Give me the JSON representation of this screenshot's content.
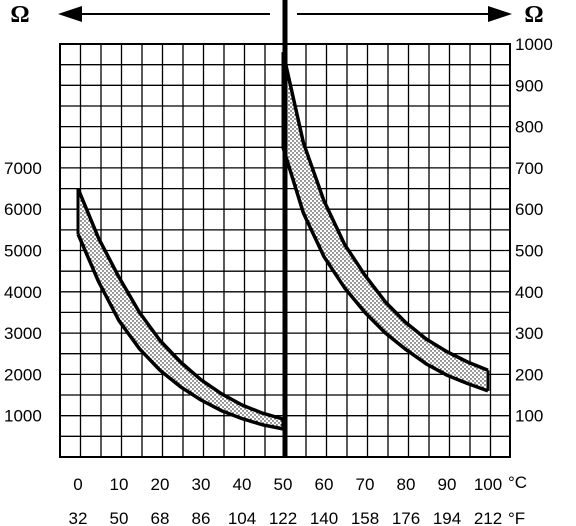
{
  "chart_data": {
    "type": "area",
    "title": "",
    "colors": {
      "ink": "#000000",
      "background": "#ffffff",
      "band_fill": "stipple-gray"
    },
    "grid": true,
    "left_axis": {
      "unit_label": "Ω",
      "ticks": [
        1000,
        2000,
        3000,
        4000,
        5000,
        6000,
        7000
      ],
      "ylim": [
        0,
        10000
      ]
    },
    "right_axis": {
      "unit_label": "Ω",
      "ticks": [
        100,
        200,
        300,
        400,
        500,
        600,
        700,
        800,
        900,
        1000
      ],
      "ylim": [
        0,
        1000
      ]
    },
    "x_axis_celsius": {
      "unit_label": "°C",
      "ticks": [
        0,
        10,
        20,
        30,
        40,
        50,
        60,
        70,
        80,
        90,
        100
      ],
      "tick_labels": [
        "0",
        "10",
        "20",
        "30",
        "40",
        "50",
        "60",
        "70",
        "80",
        "90",
        "100"
      ],
      "xlim": [
        -5,
        100
      ]
    },
    "x_axis_fahrenheit": {
      "unit_label": "°F",
      "ticks": [
        32,
        50,
        68,
        86,
        104,
        122,
        140,
        158,
        176,
        194,
        212
      ],
      "tick_labels": [
        "32",
        "50",
        "68",
        "86",
        "104",
        "122",
        "140",
        "158",
        "176",
        "194",
        "212"
      ]
    },
    "series": [
      {
        "axis": "left",
        "x": [
          0,
          5,
          10,
          15,
          20,
          25,
          30,
          35,
          40,
          45,
          50
        ],
        "upper": [
          6500,
          5300,
          4350,
          3500,
          2820,
          2300,
          1870,
          1530,
          1260,
          1060,
          920
        ],
        "lower": [
          5400,
          4250,
          3300,
          2620,
          2100,
          1700,
          1380,
          1120,
          930,
          780,
          680
        ]
      },
      {
        "axis": "right",
        "x": [
          50,
          55,
          60,
          65,
          70,
          75,
          80,
          85,
          90,
          95,
          100
        ],
        "upper": [
          980,
          760,
          620,
          515,
          440,
          375,
          325,
          285,
          255,
          230,
          210
        ],
        "lower": [
          750,
          590,
          485,
          410,
          350,
          300,
          260,
          225,
          198,
          178,
          160
        ]
      }
    ]
  }
}
